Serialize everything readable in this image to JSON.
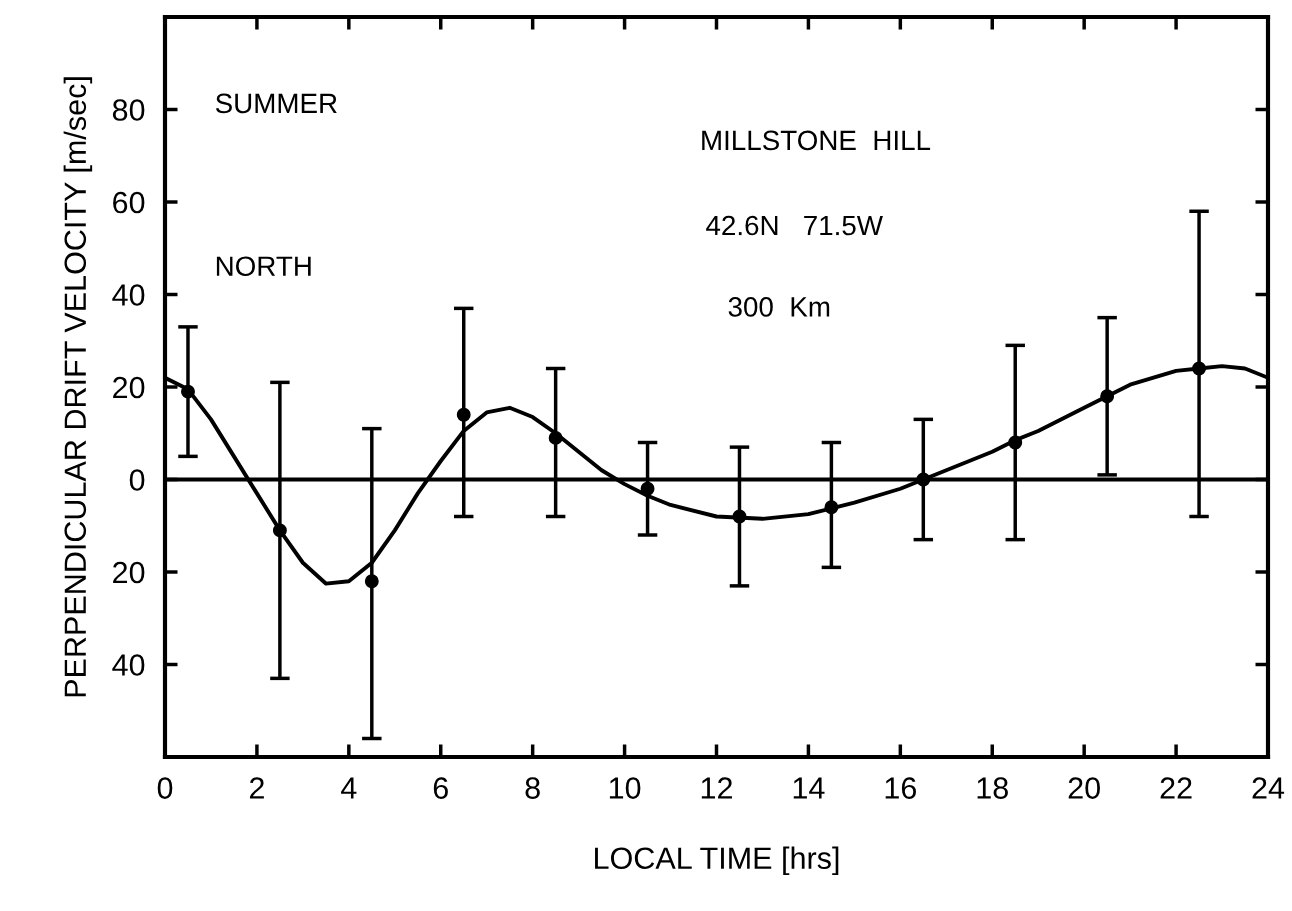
{
  "chart_data": {
    "type": "scatter",
    "xlabel": "LOCAL TIME [hrs]",
    "ylabel": "PERPENDICULAR DRIFT VELOCITY [m/sec]",
    "annotations": [
      "SUMMER",
      "NORTH",
      "MILLSTONE  HILL",
      "42.6N   71.5W",
      "300  Km"
    ],
    "xlim": [
      0,
      24
    ],
    "xticks": [
      0,
      2,
      4,
      6,
      8,
      10,
      12,
      14,
      16,
      18,
      20,
      22,
      24
    ],
    "ylim": [
      -60,
      100
    ],
    "yticks": [
      {
        "value": -40,
        "label": "40"
      },
      {
        "value": -20,
        "label": "20"
      },
      0,
      20,
      40,
      60,
      80
    ],
    "grid": false,
    "marker": "circle",
    "series": [
      {
        "color": "#000000",
        "x": [
          0.5,
          2.5,
          4.5,
          6.5,
          8.5,
          10.5,
          12.5,
          14.5,
          16.5,
          18.5,
          20.5,
          22.5
        ],
        "values": [
          19,
          -11,
          -22,
          14,
          9,
          -2,
          -8,
          -6,
          0,
          8,
          18,
          24
        ],
        "errors": [
          [
            5,
            33
          ],
          [
            -43,
            21
          ],
          [
            -56,
            11
          ],
          [
            -8,
            37
          ],
          [
            -8,
            24
          ],
          [
            -12,
            8
          ],
          [
            -23,
            7
          ],
          [
            -19,
            8
          ],
          [
            -13,
            13
          ],
          [
            -13,
            29
          ],
          [
            1,
            35
          ],
          [
            -8,
            58
          ]
        ]
      },
      {
        "type": "line",
        "color": "#000000",
        "marker": "none",
        "line_style": "solid",
        "x": [
          0,
          0.5,
          1,
          1.5,
          2,
          2.5,
          3,
          3.5,
          4,
          4.5,
          5,
          5.5,
          6,
          6.5,
          7,
          7.5,
          8,
          8.5,
          9,
          9.5,
          10,
          10.5,
          11,
          12,
          13,
          14,
          15,
          16,
          16.5,
          17,
          18,
          18.5,
          19,
          20,
          20.5,
          21,
          22,
          22.5,
          23,
          23.5,
          24
        ],
        "values": [
          22,
          19.5,
          13,
          5,
          -3,
          -11,
          -18,
          -22.5,
          -22,
          -18,
          -11,
          -3,
          4,
          10.5,
          14.5,
          15.5,
          13.5,
          10,
          6,
          2,
          -1,
          -3.5,
          -5.5,
          -8,
          -8.5,
          -7.5,
          -5,
          -2,
          0,
          2,
          6,
          8.5,
          10.5,
          15.5,
          18,
          20.5,
          23.5,
          24,
          24.5,
          24,
          22
        ]
      }
    ],
    "ref_lines": [
      {
        "axis": "y",
        "value": 0,
        "color": "#000000",
        "line_style": "solid"
      }
    ]
  }
}
